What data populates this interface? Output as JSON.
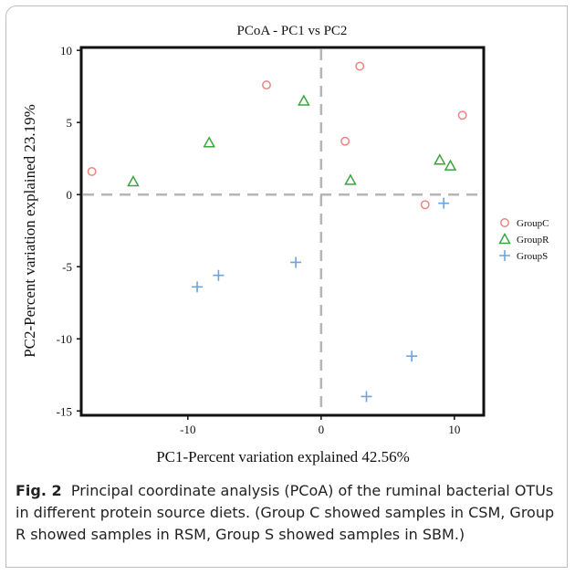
{
  "chart_data": {
    "type": "scatter",
    "title": "PCoA - PC1 vs PC2",
    "xlabel": "PC1-Percent variation explained 42.56%",
    "ylabel": "PC2-Percent variation explained 23.19%",
    "xlim": [
      -18,
      12.2
    ],
    "ylim": [
      -15.3,
      10.2
    ],
    "xticks": [
      -10,
      0,
      10
    ],
    "yticks": [
      10,
      5,
      0,
      -5,
      -10,
      -15
    ],
    "reference_lines": {
      "x": 0,
      "y": 0,
      "style": "dashed"
    },
    "legend_position": "right",
    "series": [
      {
        "name": "GroupC",
        "marker": "circle",
        "color": "#e8877f",
        "points": [
          [
            -17.2,
            1.6
          ],
          [
            -4.1,
            7.6
          ],
          [
            2.9,
            8.9
          ],
          [
            1.8,
            3.7
          ],
          [
            10.6,
            5.5
          ],
          [
            7.8,
            -0.7
          ]
        ]
      },
      {
        "name": "GroupR",
        "marker": "triangle",
        "color": "#3aa63a",
        "points": [
          [
            -14.1,
            0.9
          ],
          [
            -8.4,
            3.6
          ],
          [
            -1.3,
            6.5
          ],
          [
            2.2,
            1.0
          ],
          [
            8.9,
            2.4
          ],
          [
            9.7,
            2.0
          ]
        ]
      },
      {
        "name": "GroupS",
        "marker": "plus",
        "color": "#6fa3dc",
        "points": [
          [
            9.2,
            -0.6
          ],
          [
            -1.9,
            -4.7
          ],
          [
            -7.7,
            -5.6
          ],
          [
            -9.3,
            -6.4
          ],
          [
            6.8,
            -11.2
          ],
          [
            3.4,
            -14.0
          ]
        ]
      }
    ]
  },
  "caption": {
    "label": "Fig. 2",
    "text": "Principal coordinate analysis (PCoA) of the ruminal bacterial OTUs in different protein source diets. (Group C showed samples in CSM, Group R showed samples in RSM, Group S showed samples in SBM.)"
  }
}
